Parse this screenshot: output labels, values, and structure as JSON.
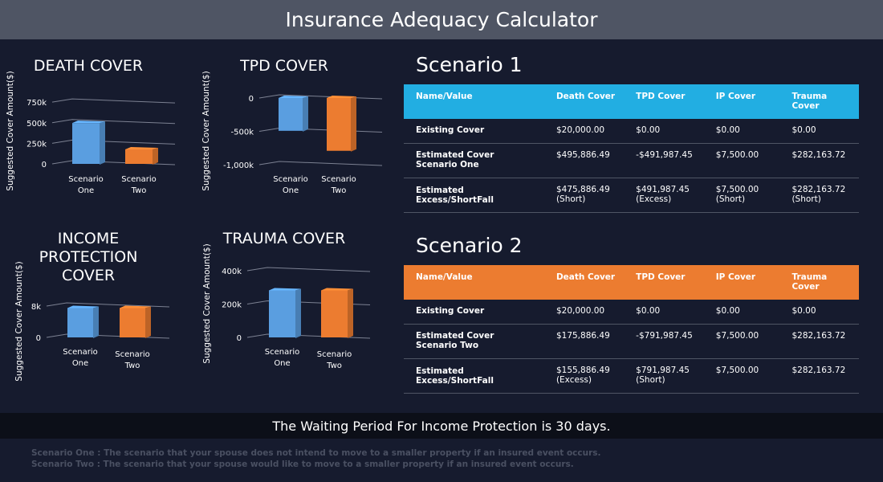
{
  "app": {
    "title": "Insurance Adequacy Calculator"
  },
  "colors": {
    "header_bg": "#4f5564",
    "page_bg": "#161b2e",
    "scenario_one": "#5a9ee0",
    "scenario_two": "#ec7c30",
    "scenario1_header": "#22aee2",
    "scenario2_header": "#ec7c30"
  },
  "chart_data": [
    {
      "type": "bar",
      "title": "DEATH COVER",
      "ylabel": "Suggested Cover Amount($)",
      "categories": [
        "Scenario One",
        "Scenario Two"
      ],
      "values": [
        495886.49,
        175886.49
      ],
      "yticks": [
        0,
        250000,
        500000,
        750000
      ],
      "ytick_labels": [
        "0",
        "250k",
        "500k",
        "750k"
      ],
      "ylim": [
        0,
        800000
      ],
      "grid": true
    },
    {
      "type": "bar",
      "title": "TPD COVER",
      "ylabel": "Suggested Cover Amount($)",
      "categories": [
        "Scenario One",
        "Scenario Two"
      ],
      "values": [
        -491987.45,
        -791987.45
      ],
      "yticks": [
        0,
        -500000,
        -1000000
      ],
      "ytick_labels": [
        "0",
        "-500k",
        "-1,000k"
      ],
      "ylim": [
        -1000000,
        0
      ],
      "grid": true
    },
    {
      "type": "bar",
      "title": "INCOME PROTECTION COVER",
      "ylabel": "Suggested Cover Amount($)",
      "categories": [
        "Scenario One",
        "Scenario Two"
      ],
      "values": [
        7500,
        7500
      ],
      "yticks": [
        0,
        8000
      ],
      "ytick_labels": [
        "0",
        "8k"
      ],
      "ylim": [
        0,
        8000
      ],
      "grid": true
    },
    {
      "type": "bar",
      "title": "TRAUMA COVER",
      "ylabel": "Suggested Cover Amount($)",
      "categories": [
        "Scenario One",
        "Scenario Two"
      ],
      "values": [
        282163.72,
        282163.72
      ],
      "yticks": [
        0,
        200000,
        400000
      ],
      "ytick_labels": [
        "0",
        "200k",
        "400k"
      ],
      "ylim": [
        0,
        400000
      ],
      "grid": true
    }
  ],
  "scenario1": {
    "title": "Scenario 1",
    "headers": [
      "Name/Value",
      "Death Cover",
      "TPD Cover",
      "IP Cover",
      "Trauma Cover"
    ],
    "rows": [
      [
        "Existing Cover",
        "$20,000.00",
        "$0.00",
        "$0.00",
        "$0.00"
      ],
      [
        "Estimated Cover Scenario One",
        "$495,886.49",
        "-$491,987.45",
        "$7,500.00",
        "$282,163.72"
      ],
      [
        "Estimated Excess/ShortFall",
        "$475,886.49 (Short)",
        "$491,987.45 (Excess)",
        "$7,500.00 (Short)",
        "$282,163.72 (Short)"
      ]
    ]
  },
  "scenario2": {
    "title": "Scenario 2",
    "headers": [
      "Name/Value",
      "Death Cover",
      "TPD Cover",
      "IP Cover",
      "Trauma Cover"
    ],
    "rows": [
      [
        "Existing Cover",
        "$20,000.00",
        "$0.00",
        "$0.00",
        "$0.00"
      ],
      [
        "Estimated Cover Scenario Two",
        "$175,886.49",
        "-$791,987.45",
        "$7,500.00",
        "$282,163.72"
      ],
      [
        "Estimated Excess/ShortFall",
        "$155,886.49 (Excess)",
        "$791,987.45 (Short)",
        "$7,500.00",
        "$282,163.72"
      ]
    ]
  },
  "waiting_period": "The Waiting Period For Income Protection is 30 days.",
  "notes": [
    "Scenario One : The scenario that your spouse does not intend to move to a smaller property if an insured event occurs.",
    "Scenario Two : The scenario that your spouse would like to move to a smaller property if an insured event occurs."
  ]
}
